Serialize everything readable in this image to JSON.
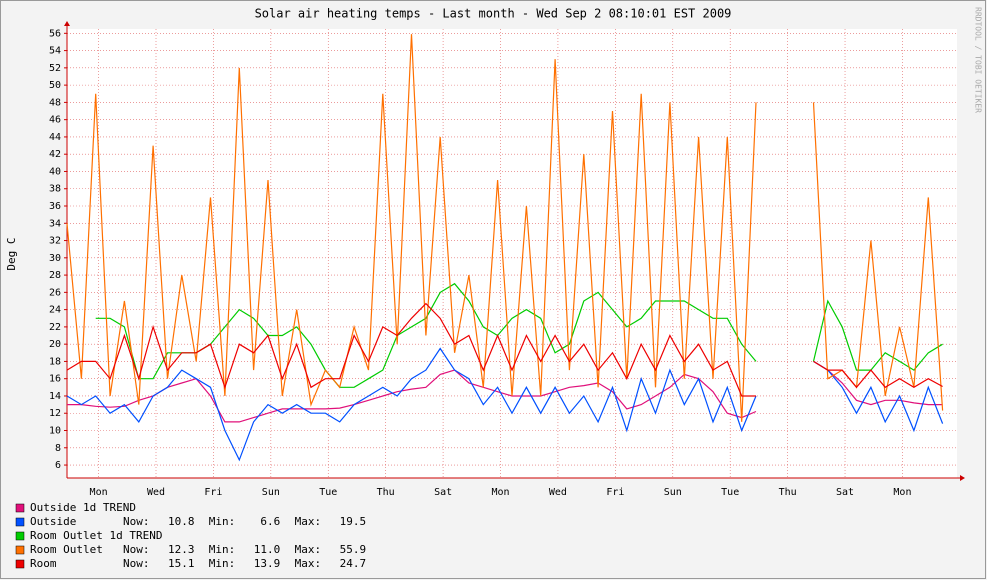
{
  "chart_data": {
    "type": "line",
    "title": "Solar air heating temps - Last month - Wed Sep  2 08:10:01 EST 2009",
    "y_label": "Deg C",
    "watermark": "RRDTOOL / TOBI OETIKER",
    "grid": true,
    "xlim": [
      0,
      31
    ],
    "ylim": [
      4.5,
      56.5
    ],
    "yticks": [
      6,
      8,
      10,
      12,
      14,
      16,
      18,
      20,
      22,
      24,
      26,
      28,
      30,
      32,
      34,
      36,
      38,
      40,
      42,
      44,
      46,
      48,
      50,
      52,
      54,
      56
    ],
    "xticks": [
      {
        "value": 1.1,
        "label": "Mon"
      },
      {
        "value": 3.1,
        "label": "Wed"
      },
      {
        "value": 5.1,
        "label": "Fri"
      },
      {
        "value": 7.1,
        "label": "Sun"
      },
      {
        "value": 9.1,
        "label": "Tue"
      },
      {
        "value": 11.1,
        "label": "Thu"
      },
      {
        "value": 13.1,
        "label": "Sat"
      },
      {
        "value": 15.1,
        "label": "Mon"
      },
      {
        "value": 17.1,
        "label": "Wed"
      },
      {
        "value": 19.1,
        "label": "Fri"
      },
      {
        "value": 21.1,
        "label": "Sun"
      },
      {
        "value": 23.1,
        "label": "Tue"
      },
      {
        "value": 25.1,
        "label": "Thu"
      },
      {
        "value": 27.1,
        "label": "Sat"
      },
      {
        "value": 29.1,
        "label": "Mon"
      }
    ],
    "stat_labels": [
      "Now:",
      "Min:",
      "Max:"
    ],
    "x": [
      0,
      0.5,
      1,
      1.5,
      2,
      2.5,
      3,
      3.5,
      4,
      4.5,
      5,
      5.5,
      6,
      6.5,
      7,
      7.5,
      8,
      8.5,
      9,
      9.5,
      10,
      10.5,
      11,
      11.5,
      12,
      12.5,
      13,
      13.5,
      14,
      14.5,
      15,
      15.5,
      16,
      16.5,
      17,
      17.5,
      18,
      18.5,
      19,
      19.5,
      20,
      20.5,
      21,
      21.5,
      22,
      22.5,
      23,
      23.5,
      24,
      24.5,
      25,
      25.5,
      26,
      26.5,
      27,
      27.5,
      28,
      28.5,
      29,
      29.5,
      30,
      30.5
    ],
    "series": [
      {
        "name": "Outside 1d TREND",
        "color": "#e0107a",
        "values": [
          13,
          13,
          12.8,
          12.7,
          12.8,
          13.5,
          14,
          15,
          15.5,
          16,
          14,
          11,
          11,
          11.5,
          12,
          12.5,
          12.5,
          12.5,
          12.5,
          12.6,
          13,
          13.5,
          14,
          14.5,
          14.8,
          15,
          16.5,
          17,
          15.5,
          15,
          14.5,
          14,
          14,
          14,
          14.5,
          15,
          15.2,
          15.5,
          14.5,
          12.5,
          13,
          14,
          15,
          16.5,
          16,
          14.5,
          12,
          11.5,
          12.2,
          null,
          null,
          null,
          18,
          17,
          15.5,
          13.5,
          13,
          13.5,
          13.5,
          13.2,
          13,
          13
        ]
      },
      {
        "name": "Outside",
        "color": "#0050ff",
        "stats": {
          "now": 10.8,
          "min": 6.6,
          "max": 19.5
        },
        "values": [
          14,
          13,
          14,
          12,
          13,
          11,
          14,
          15,
          17,
          16,
          15,
          10,
          6.6,
          11,
          13,
          12,
          13,
          12,
          12,
          11,
          13,
          14,
          15,
          14,
          16,
          17,
          19.5,
          17,
          16,
          13,
          15,
          12,
          15,
          12,
          15,
          12,
          14,
          11,
          15,
          10,
          16,
          12,
          17,
          13,
          16,
          11,
          15,
          10,
          14,
          null,
          null,
          null,
          18,
          17,
          15,
          12,
          15,
          11,
          14,
          10,
          15,
          10.8
        ]
      },
      {
        "name": "Room Outlet 1d TREND",
        "color": "#00cc00",
        "values": [
          null,
          null,
          23,
          23,
          22,
          16,
          16,
          19,
          19,
          19,
          20,
          22,
          24,
          23,
          21,
          21,
          22,
          20,
          17,
          15,
          15,
          16,
          17,
          21,
          22,
          23,
          26,
          27,
          25,
          22,
          21,
          23,
          24,
          23,
          19,
          20,
          25,
          26,
          24,
          22,
          23,
          25,
          25,
          25,
          24,
          23,
          23,
          20,
          18,
          null,
          null,
          null,
          18,
          25,
          22,
          17,
          17,
          19,
          18,
          17,
          19,
          20
        ]
      },
      {
        "name": "Room Outlet",
        "color": "#ff7000",
        "stats": {
          "now": 12.3,
          "min": {
            "value": 11,
            "label": "11.0"
          },
          "max": 55.9
        },
        "values": [
          34,
          16,
          49,
          14,
          25,
          13,
          43,
          16,
          28,
          18,
          37,
          14,
          52,
          17,
          39,
          14,
          24,
          13,
          17,
          15,
          22,
          17,
          49,
          20,
          55.9,
          21,
          44,
          19,
          28,
          15,
          39,
          14,
          36,
          14,
          53,
          17,
          42,
          15,
          47,
          16,
          49,
          15,
          48,
          16,
          44,
          16,
          44,
          11,
          48,
          null,
          null,
          null,
          48,
          16,
          17,
          15,
          32,
          14,
          22,
          15,
          37,
          12.3
        ]
      },
      {
        "name": "Room",
        "color": "#ee0000",
        "stats": {
          "now": 15.1,
          "min": 13.9,
          "max": 24.7
        },
        "values": [
          17,
          18,
          18,
          16,
          21,
          16,
          22,
          17,
          19,
          19,
          20,
          15,
          20,
          19,
          21,
          16,
          20,
          15,
          16,
          16,
          21,
          18,
          22,
          21,
          23,
          24.7,
          23,
          20,
          21,
          17,
          21,
          17,
          21,
          18,
          21,
          18,
          20,
          17,
          19,
          16,
          20,
          17,
          21,
          18,
          20,
          17,
          18,
          14,
          14,
          null,
          null,
          null,
          18,
          17,
          17,
          15,
          17,
          15,
          16,
          15,
          16,
          15.1
        ]
      }
    ]
  }
}
